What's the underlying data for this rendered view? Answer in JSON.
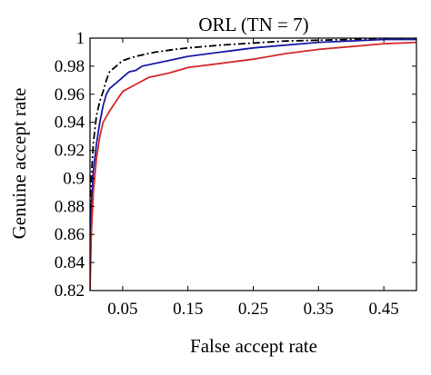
{
  "chart_data": {
    "type": "line",
    "title": "ORL (TN = 7)",
    "xlabel": "False accept rate",
    "ylabel": "Genuine accept rate",
    "xlim": [
      0,
      0.5
    ],
    "ylim": [
      0.82,
      1.0
    ],
    "xticks": [
      0.05,
      0.15,
      0.25,
      0.35,
      0.45
    ],
    "xtick_labels": [
      "0.05",
      "0.15",
      "0.25",
      "0.35",
      "0.45"
    ],
    "yticks": [
      0.82,
      0.84,
      0.86,
      0.88,
      0.9,
      0.92,
      0.94,
      0.96,
      0.98,
      1.0
    ],
    "ytick_labels": [
      "0.82",
      "0.84",
      "0.86",
      "0.88",
      "0.9",
      "0.92",
      "0.94",
      "0.96",
      "0.98",
      "1"
    ],
    "grid": false,
    "series": [
      {
        "color": "#000000",
        "dash": "dashdot",
        "points": [
          [
            0,
            0.866
          ],
          [
            0.002,
            0.9
          ],
          [
            0.005,
            0.925
          ],
          [
            0.01,
            0.945
          ],
          [
            0.015,
            0.955
          ],
          [
            0.02,
            0.962
          ],
          [
            0.025,
            0.97
          ],
          [
            0.03,
            0.976
          ],
          [
            0.04,
            0.98
          ],
          [
            0.05,
            0.984
          ],
          [
            0.07,
            0.987
          ],
          [
            0.1,
            0.99
          ],
          [
            0.13,
            0.992
          ],
          [
            0.15,
            0.993
          ],
          [
            0.2,
            0.995
          ],
          [
            0.3,
            0.998
          ],
          [
            0.4,
            0.999
          ],
          [
            0.5,
            1.0
          ]
        ]
      },
      {
        "color": "#1a1aa6",
        "dash": "solid",
        "points": [
          [
            0,
            0.85
          ],
          [
            0.002,
            0.88
          ],
          [
            0.005,
            0.905
          ],
          [
            0.01,
            0.925
          ],
          [
            0.015,
            0.94
          ],
          [
            0.02,
            0.952
          ],
          [
            0.025,
            0.96
          ],
          [
            0.03,
            0.964
          ],
          [
            0.04,
            0.968
          ],
          [
            0.05,
            0.972
          ],
          [
            0.06,
            0.976
          ],
          [
            0.07,
            0.977
          ],
          [
            0.08,
            0.98
          ],
          [
            0.1,
            0.982
          ],
          [
            0.12,
            0.984
          ],
          [
            0.15,
            0.987
          ],
          [
            0.2,
            0.99
          ],
          [
            0.25,
            0.993
          ],
          [
            0.3,
            0.995
          ],
          [
            0.35,
            0.997
          ],
          [
            0.4,
            0.998
          ],
          [
            0.45,
            0.999
          ],
          [
            0.5,
            0.999
          ]
        ]
      },
      {
        "color": "#d42a2a",
        "dash": "solid",
        "points": [
          [
            0,
            0.82
          ],
          [
            0.002,
            0.86
          ],
          [
            0.005,
            0.89
          ],
          [
            0.01,
            0.915
          ],
          [
            0.015,
            0.93
          ],
          [
            0.02,
            0.94
          ],
          [
            0.03,
            0.948
          ],
          [
            0.04,
            0.955
          ],
          [
            0.05,
            0.962
          ],
          [
            0.07,
            0.967
          ],
          [
            0.09,
            0.972
          ],
          [
            0.12,
            0.975
          ],
          [
            0.15,
            0.979
          ],
          [
            0.2,
            0.982
          ],
          [
            0.25,
            0.985
          ],
          [
            0.3,
            0.989
          ],
          [
            0.35,
            0.992
          ],
          [
            0.4,
            0.994
          ],
          [
            0.45,
            0.996
          ],
          [
            0.5,
            0.997
          ]
        ]
      }
    ]
  }
}
